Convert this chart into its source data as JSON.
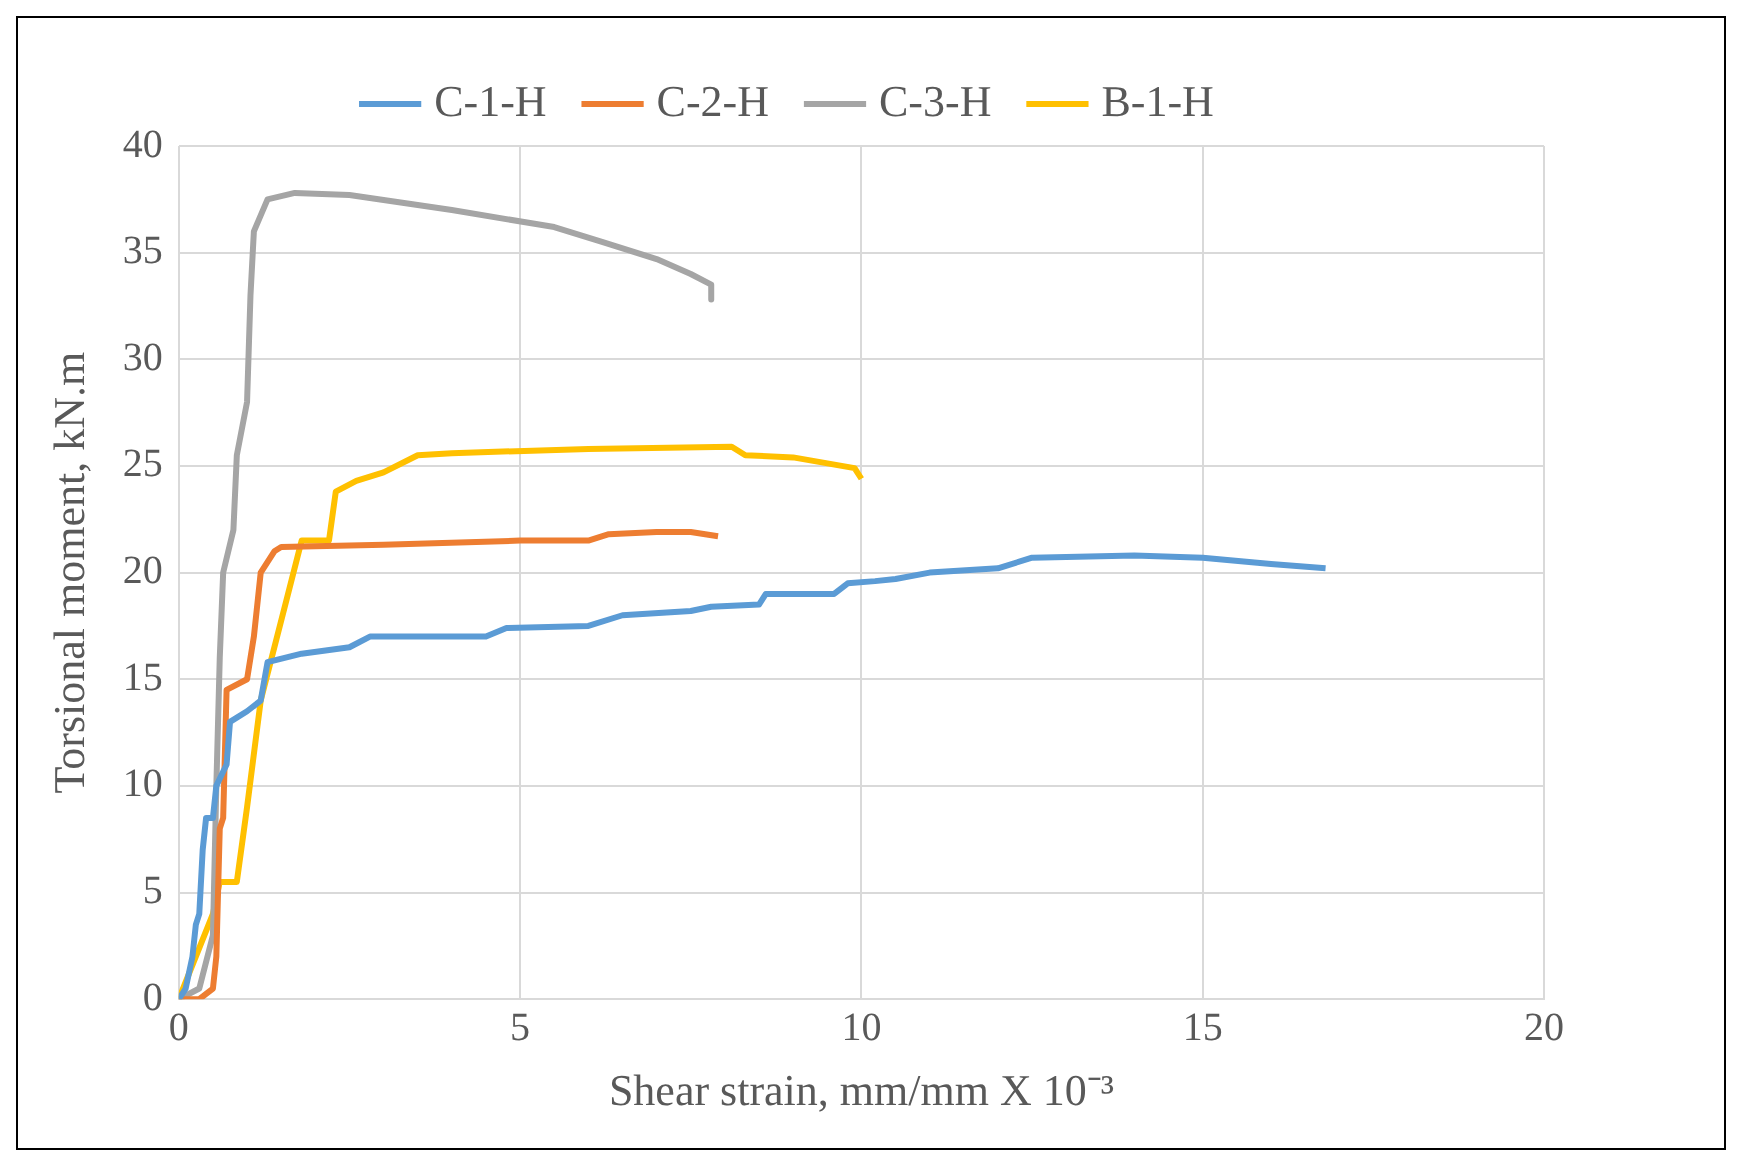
{
  "chart_data": {
    "type": "line",
    "xlabel": "Shear strain, mm/mm X 10⁻³",
    "ylabel": "Torsional moment, kN.m",
    "xlim": [
      0,
      20
    ],
    "xticks": [
      0,
      5,
      10,
      15,
      20
    ],
    "ylim": [
      0,
      40
    ],
    "yticks": [
      0,
      5,
      10,
      15,
      20,
      25,
      30,
      35,
      40
    ],
    "grid": true,
    "legend": "top",
    "marker": "none",
    "line_style": "solid",
    "series": [
      {
        "name": "C-1-H",
        "color": "#5b9bd5",
        "x": [
          0,
          0.1,
          0.2,
          0.25,
          0.3,
          0.35,
          0.4,
          0.5,
          0.55,
          0.7,
          0.75,
          1,
          1.2,
          1.3,
          1.8,
          2.5,
          2.8,
          4.5,
          4.8,
          6,
          6.5,
          7.5,
          7.8,
          8.5,
          8.6,
          9.6,
          9.8,
          10.2,
          10.5,
          11,
          12,
          12.5,
          14,
          15,
          16,
          16.8
        ],
        "values": [
          0,
          0.5,
          2,
          3.5,
          4,
          7,
          8.5,
          8.5,
          10,
          11,
          13,
          13.5,
          14,
          15.8,
          16.2,
          16.5,
          17,
          17,
          17.4,
          17.5,
          18,
          18.2,
          18.4,
          18.5,
          19,
          19,
          19.5,
          19.6,
          19.7,
          20,
          20.2,
          20.7,
          20.8,
          20.7,
          20.4,
          20.2
        ]
      },
      {
        "name": "C-2-H",
        "color": "#ed7d31",
        "x": [
          0,
          0.3,
          0.5,
          0.55,
          0.6,
          0.65,
          0.7,
          1,
          1.1,
          1.2,
          1.4,
          1.5,
          3,
          5,
          6,
          6.3,
          7,
          7.5,
          7.9
        ],
        "values": [
          0,
          0,
          0.5,
          2,
          8,
          8.5,
          14.5,
          15,
          17,
          20,
          21,
          21.2,
          21.3,
          21.5,
          21.5,
          21.8,
          21.9,
          21.9,
          21.7
        ]
      },
      {
        "name": "C-3-H",
        "color": "#a5a5a5",
        "x": [
          0,
          0.3,
          0.5,
          0.55,
          0.6,
          0.65,
          0.8,
          0.85,
          1,
          1.05,
          1.1,
          1.3,
          1.7,
          2.5,
          4,
          5.5,
          6.2,
          7,
          7.5,
          7.8,
          7.8
        ],
        "values": [
          0,
          0.5,
          3,
          10,
          16,
          20,
          22,
          25.5,
          28,
          33,
          36,
          37.5,
          37.8,
          37.7,
          37,
          36.2,
          35.5,
          34.7,
          34,
          33.5,
          32.8
        ]
      },
      {
        "name": "B-1-H",
        "color": "#ffc000",
        "x": [
          0,
          0.5,
          0.6,
          0.85,
          1,
          1.2,
          1.6,
          1.8,
          2.2,
          2.3,
          2.6,
          3,
          3.5,
          4,
          6,
          8.1,
          8.3,
          9,
          9.9,
          10
        ],
        "values": [
          0,
          4,
          5.5,
          5.5,
          9,
          14,
          19,
          21.5,
          21.5,
          23.8,
          24.3,
          24.7,
          25.5,
          25.6,
          25.8,
          25.9,
          25.5,
          25.4,
          24.9,
          24.4
        ]
      }
    ]
  }
}
